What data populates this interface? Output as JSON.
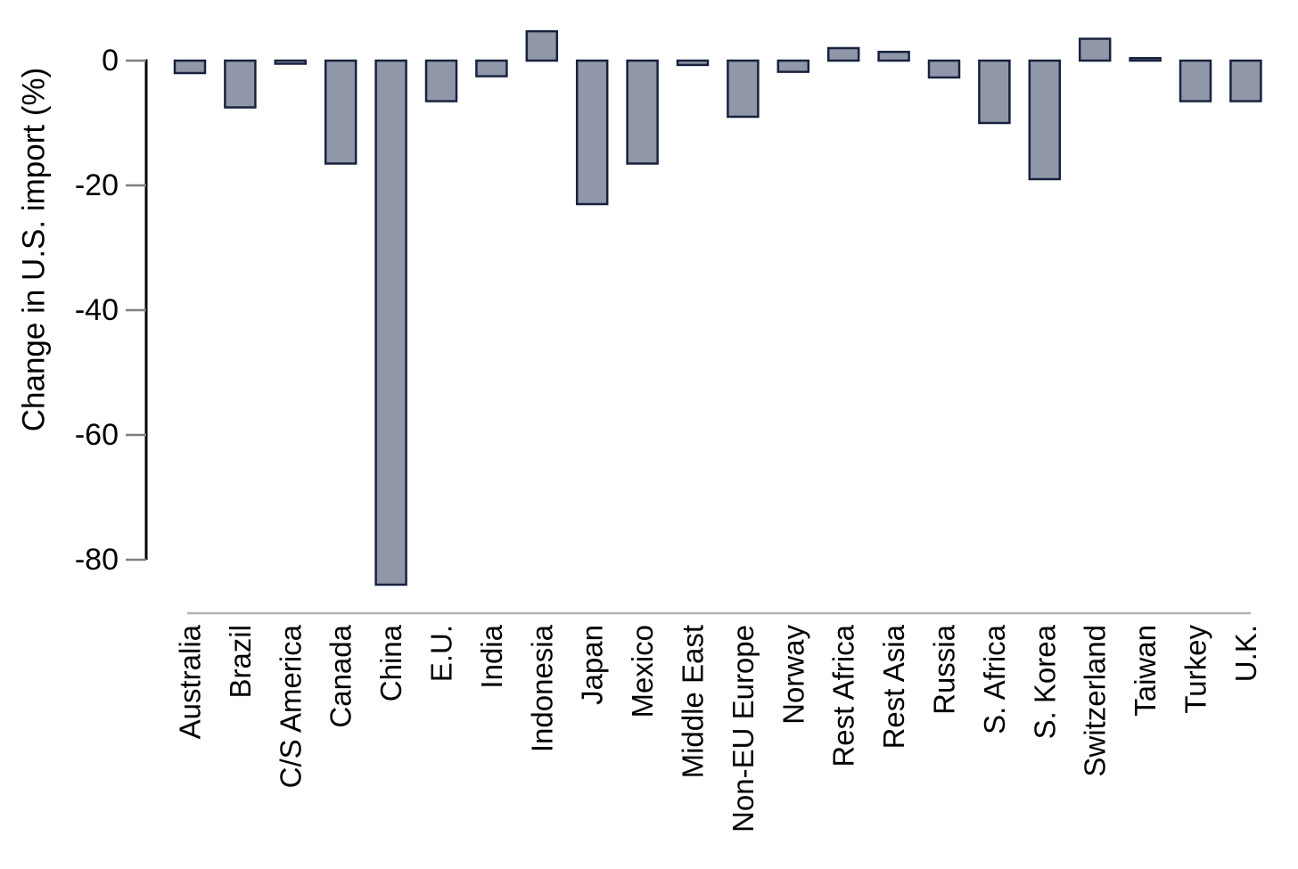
{
  "chart_data": {
    "type": "bar",
    "title": "",
    "xlabel": "",
    "ylabel": "Change in U.S. import (%)",
    "categories": [
      "Australia",
      "Brazil",
      "C/S America",
      "Canada",
      "China",
      "E.U.",
      "India",
      "Indonesia",
      "Japan",
      "Mexico",
      "Middle East",
      "Non-EU Europe",
      "Norway",
      "Rest Africa",
      "Rest Asia",
      "Russia",
      "S. Africa",
      "S. Korea",
      "Switzerland",
      "Taiwan",
      "Turkey",
      "U.K."
    ],
    "values": [
      -2,
      -7.5,
      -0.5,
      -16.5,
      -84,
      -6.5,
      -2.5,
      4.7,
      -23,
      -16.5,
      -0.7,
      -9,
      -1.8,
      2,
      1.4,
      -2.7,
      -10,
      -19,
      3.5,
      0.4,
      -6.5,
      -6.5
    ],
    "yticks": [
      0,
      -20,
      -40,
      -60,
      -80
    ],
    "ytick_labels": [
      "0",
      "-20",
      "-40",
      "-60",
      "-80"
    ],
    "ylim": [
      -87,
      6
    ],
    "grid": false,
    "legend": null,
    "bar_fill_color": "#8F97A8",
    "bar_edge_color": "#18223F",
    "axis_line_color": "#000000",
    "tick_mark_color": "#7F7F7F",
    "tick_label_color": "#000000",
    "baseline_color": "#B3B3B3"
  }
}
